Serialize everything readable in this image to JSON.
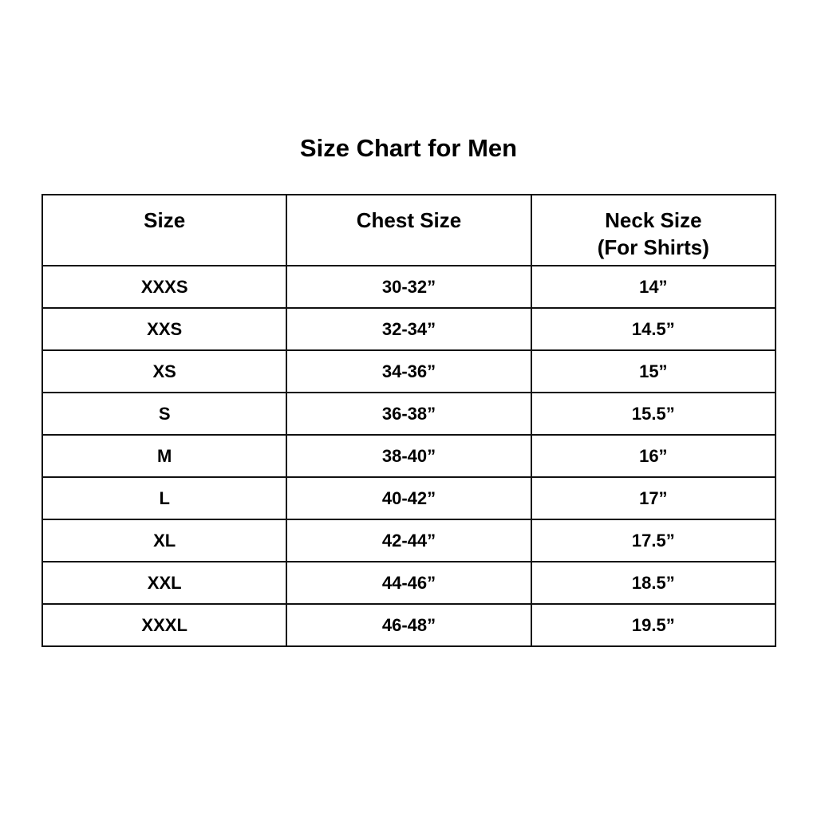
{
  "title": "Size Chart for Men",
  "headers": [
    "Size",
    "Chest Size",
    "Neck Size"
  ],
  "header_sub": "(For Shirts)",
  "rows": [
    [
      "XXXS",
      "30-32”",
      "14”"
    ],
    [
      "XXS",
      "32-34”",
      "14.5”"
    ],
    [
      "XS",
      "34-36”",
      "15”"
    ],
    [
      "S",
      "36-38”",
      "15.5”"
    ],
    [
      "M",
      "38-40”",
      "16”"
    ],
    [
      "L",
      "40-42”",
      "17”"
    ],
    [
      "XL",
      "42-44”",
      "17.5”"
    ],
    [
      "XXL",
      "44-46”",
      "18.5”"
    ],
    [
      "XXXL",
      "46-48”",
      "19.5”"
    ]
  ]
}
